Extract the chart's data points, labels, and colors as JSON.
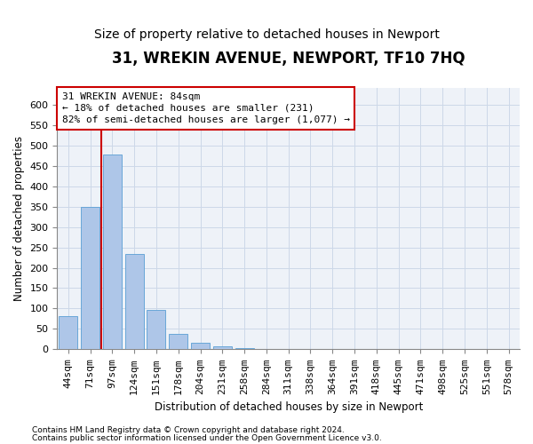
{
  "title": "31, WREKIN AVENUE, NEWPORT, TF10 7HQ",
  "subtitle": "Size of property relative to detached houses in Newport",
  "xlabel": "Distribution of detached houses by size in Newport",
  "ylabel": "Number of detached properties",
  "footnote1": "Contains HM Land Registry data © Crown copyright and database right 2024.",
  "footnote2": "Contains public sector information licensed under the Open Government Licence v3.0.",
  "annotation_line1": "31 WREKIN AVENUE: 84sqm",
  "annotation_line2": "← 18% of detached houses are smaller (231)",
  "annotation_line3": "82% of semi-detached houses are larger (1,077) →",
  "property_size": 84,
  "bar_color": "#aec6e8",
  "bar_edge_color": "#5a9fd4",
  "annotation_box_edge_color": "#cc0000",
  "vline_color": "#cc0000",
  "grid_color": "#ccd8e8",
  "background_color": "#eef2f8",
  "categories": [
    "44sqm",
    "71sqm",
    "97sqm",
    "124sqm",
    "151sqm",
    "178sqm",
    "204sqm",
    "231sqm",
    "258sqm",
    "284sqm",
    "311sqm",
    "338sqm",
    "364sqm",
    "391sqm",
    "418sqm",
    "445sqm",
    "471sqm",
    "498sqm",
    "525sqm",
    "551sqm",
    "578sqm"
  ],
  "values": [
    82,
    348,
    478,
    233,
    97,
    38,
    17,
    7,
    3,
    2,
    0,
    0,
    2,
    0,
    0,
    1,
    0,
    0,
    0,
    1,
    0
  ],
  "ylim": [
    0,
    640
  ],
  "yticks": [
    0,
    50,
    100,
    150,
    200,
    250,
    300,
    350,
    400,
    450,
    500,
    550,
    600
  ],
  "title_fontsize": 12,
  "subtitle_fontsize": 10,
  "axis_label_fontsize": 8.5,
  "tick_fontsize": 8,
  "annotation_fontsize": 8,
  "footnote_fontsize": 6.5
}
